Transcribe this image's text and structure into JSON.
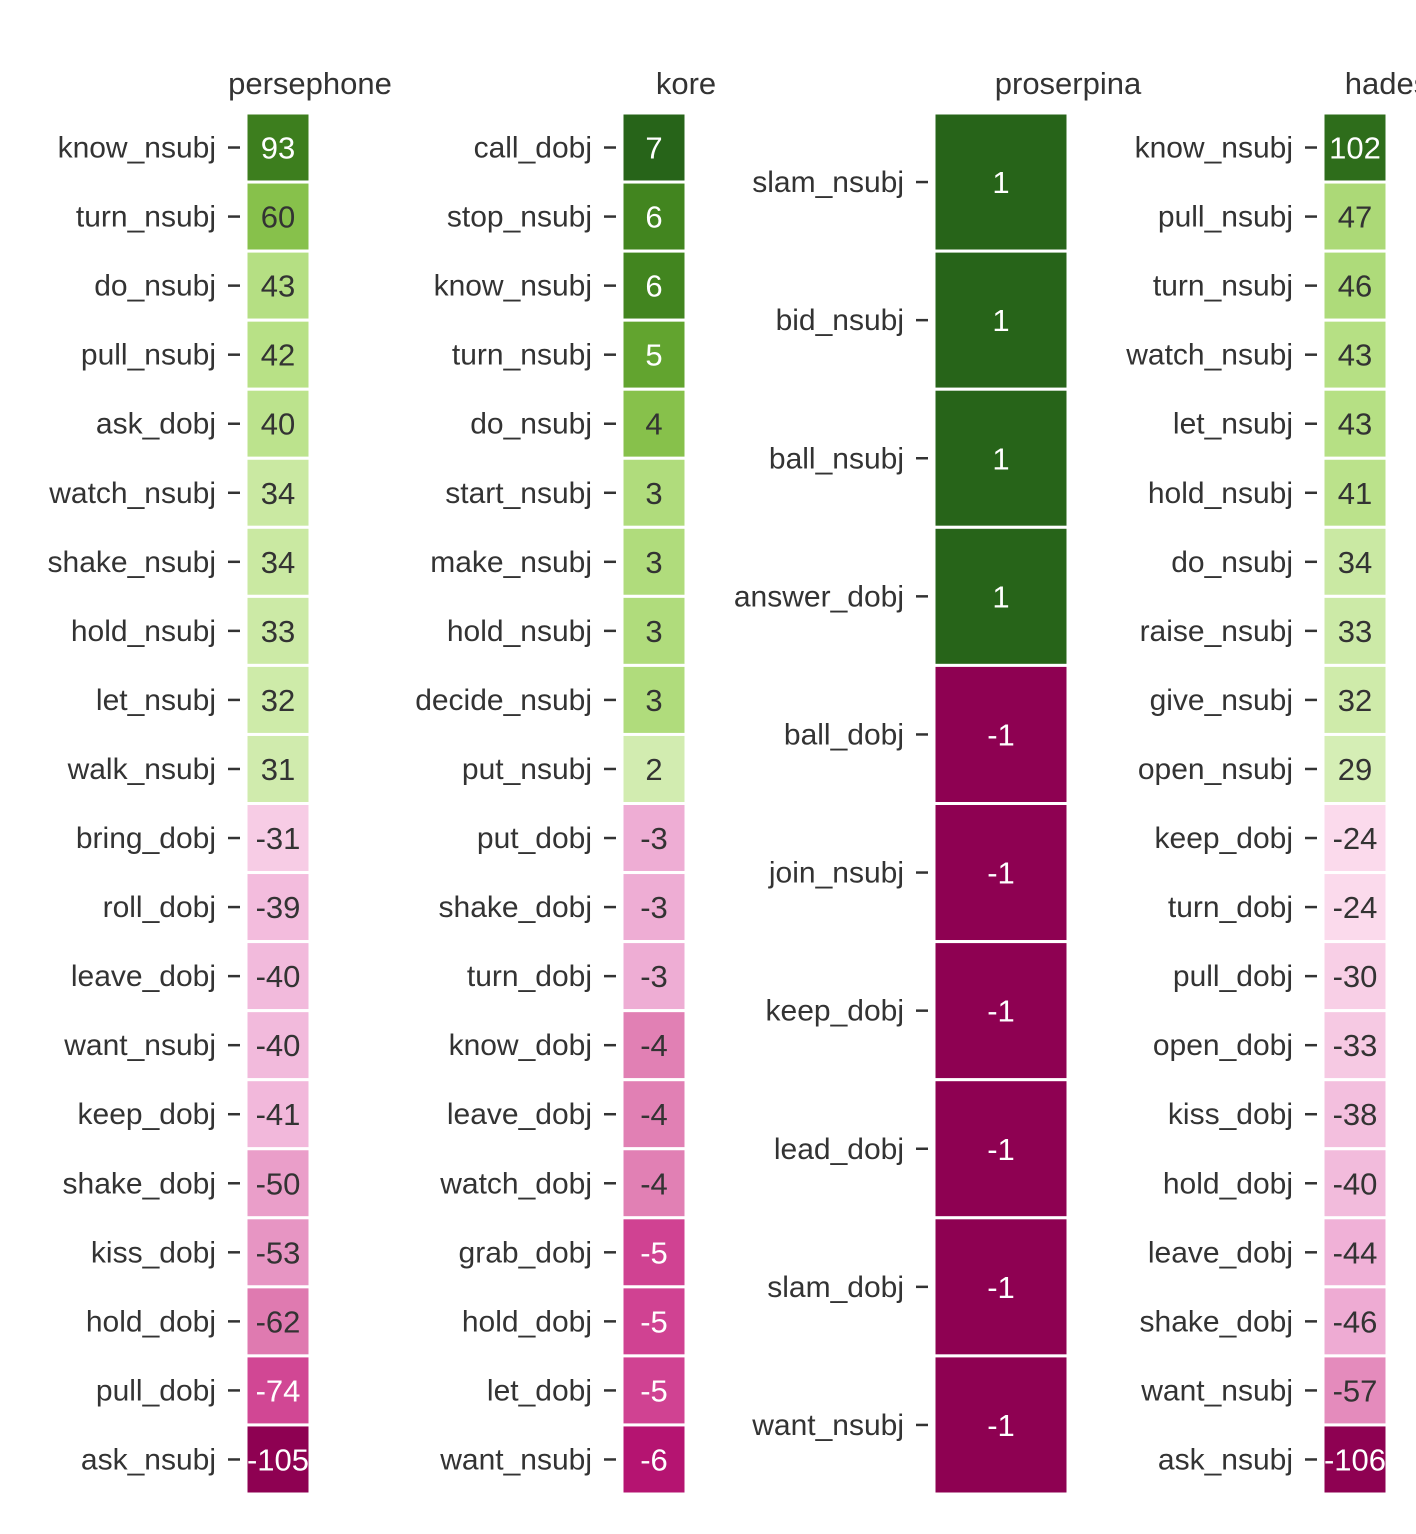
{
  "chart_data": [
    {
      "type": "heatmap",
      "title": "persephone",
      "rows": [
        "know_nsubj",
        "turn_nsubj",
        "do_nsubj",
        "pull_nsubj",
        "ask_dobj",
        "watch_nsubj",
        "shake_nsubj",
        "hold_nsubj",
        "let_nsubj",
        "walk_nsubj",
        "bring_dobj",
        "roll_dobj",
        "leave_dobj",
        "want_nsubj",
        "keep_dobj",
        "shake_dobj",
        "kiss_dobj",
        "hold_dobj",
        "pull_dobj",
        "ask_nsubj"
      ],
      "values": [
        93,
        60,
        43,
        42,
        40,
        34,
        34,
        33,
        32,
        31,
        -31,
        -39,
        -40,
        -40,
        -41,
        -50,
        -53,
        -62,
        -74,
        -105
      ],
      "colorbar": "diverging PiYG (magenta negative, green positive)",
      "color_limit": 105
    },
    {
      "type": "heatmap",
      "title": "kore",
      "rows": [
        "call_dobj",
        "stop_nsubj",
        "know_nsubj",
        "turn_nsubj",
        "do_nsubj",
        "start_nsubj",
        "make_nsubj",
        "hold_nsubj",
        "decide_nsubj",
        "put_nsubj",
        "put_dobj",
        "shake_dobj",
        "turn_dobj",
        "know_dobj",
        "leave_dobj",
        "watch_dobj",
        "grab_dobj",
        "hold_dobj",
        "let_dobj",
        "want_nsubj"
      ],
      "values": [
        7,
        6,
        6,
        5,
        4,
        3,
        3,
        3,
        3,
        2,
        -3,
        -3,
        -3,
        -4,
        -4,
        -4,
        -5,
        -5,
        -5,
        -6
      ],
      "colorbar": "diverging PiYG (magenta negative, green positive)",
      "color_limit": 7
    },
    {
      "type": "heatmap",
      "title": "proserpina",
      "rows": [
        "slam_nsubj",
        "bid_nsubj",
        "ball_nsubj",
        "answer_dobj",
        "ball_dobj",
        "join_nsubj",
        "keep_dobj",
        "lead_dobj",
        "slam_dobj",
        "want_nsubj"
      ],
      "values": [
        1,
        1,
        1,
        1,
        -1,
        -1,
        -1,
        -1,
        -1,
        -1
      ],
      "colorbar": "diverging PiYG (magenta negative, green positive)",
      "color_limit": 1
    },
    {
      "type": "heatmap",
      "title": "hades",
      "rows": [
        "know_nsubj",
        "pull_nsubj",
        "turn_nsubj",
        "watch_nsubj",
        "let_nsubj",
        "hold_nsubj",
        "do_nsubj",
        "raise_nsubj",
        "give_nsubj",
        "open_nsubj",
        "keep_dobj",
        "turn_dobj",
        "pull_dobj",
        "open_dobj",
        "kiss_dobj",
        "hold_dobj",
        "leave_dobj",
        "shake_dobj",
        "want_nsubj",
        "ask_nsubj"
      ],
      "values": [
        102,
        47,
        46,
        43,
        43,
        41,
        34,
        33,
        32,
        29,
        -24,
        -24,
        -30,
        -33,
        -38,
        -40,
        -44,
        -46,
        -57,
        -106
      ],
      "colorbar": "diverging PiYG (magenta negative, green positive)",
      "color_limit": 106
    }
  ]
}
